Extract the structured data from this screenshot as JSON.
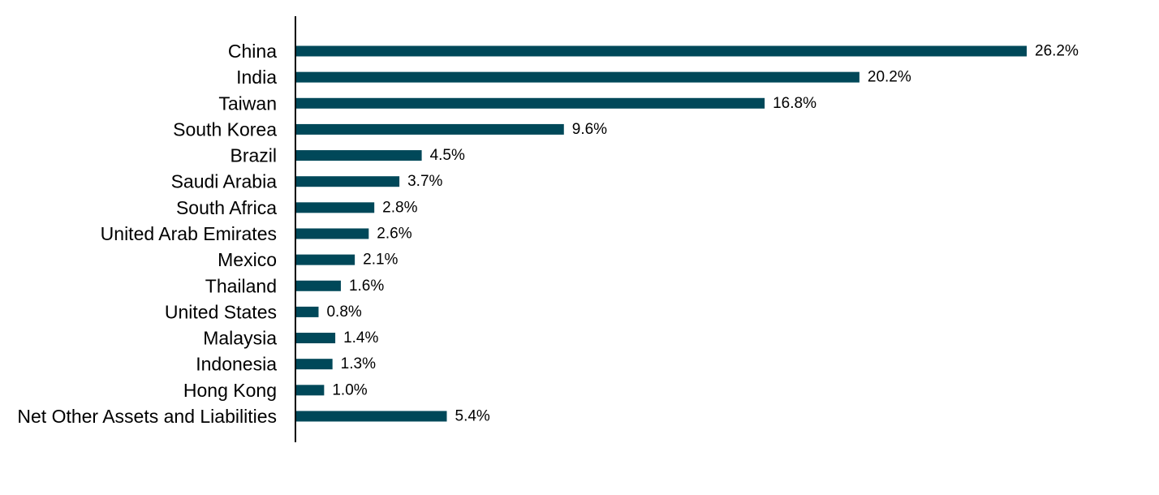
{
  "chart_data": {
    "type": "bar",
    "orientation": "horizontal",
    "title": "",
    "xlabel": "",
    "ylabel": "",
    "grid": false,
    "legend": "none",
    "xlim": [
      0,
      28
    ],
    "bar_color": "#004859",
    "axis_color": "#000000",
    "categories": [
      "China",
      "India",
      "Taiwan",
      "South Korea",
      "Brazil",
      "Saudi Arabia",
      "South Africa",
      "United Arab Emirates",
      "Mexico",
      "Thailand",
      "United States",
      "Malaysia",
      "Indonesia",
      "Hong Kong",
      "Net Other Assets and Liabilities"
    ],
    "values": [
      26.2,
      20.2,
      16.8,
      9.6,
      4.5,
      3.7,
      2.8,
      2.6,
      2.1,
      1.6,
      0.8,
      1.4,
      1.3,
      1.0,
      5.4
    ],
    "value_labels": [
      "26.2%",
      "20.2%",
      "16.8%",
      "9.6%",
      "4.5%",
      "3.7%",
      "2.8%",
      "2.6%",
      "2.1%",
      "1.6%",
      "0.8%",
      "1.4%",
      "1.3%",
      "1.0%",
      "5.4%"
    ]
  }
}
